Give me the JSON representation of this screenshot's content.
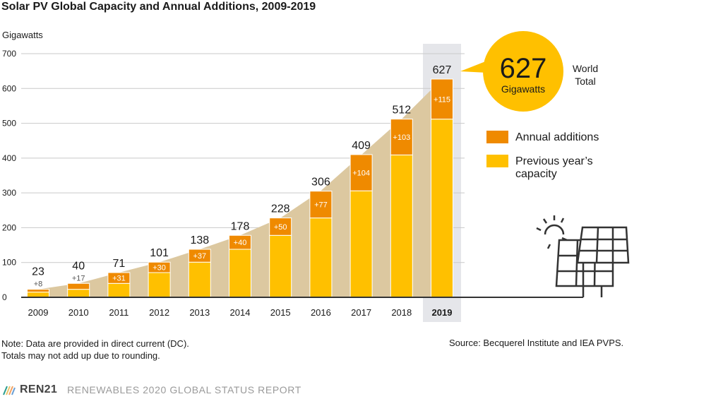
{
  "title": "Solar PV Global Capacity and Annual Additions, 2009-2019",
  "ylabel": "Gigawatts",
  "note_line1": "Note: Data are provided in direct current (DC).",
  "note_line2": "Totals may not add up due to rounding.",
  "source": "Source: Becquerel Institute and IEA PVPS.",
  "footer": {
    "logo_text": "REN21",
    "report": "RENEWABLES 2020 GLOBAL STATUS REPORT"
  },
  "callout": {
    "value": "627",
    "unit": "Gigawatts",
    "label_line1": "World",
    "label_line2": "Total"
  },
  "legend": {
    "annual": "Annual additions",
    "previous_line1": "Previous year’s",
    "previous_line2": "capacity"
  },
  "colors": {
    "annual": "#ef8a00",
    "previous": "#ffc000",
    "area": "#dcc8a0",
    "highlight": "#e5e6ea",
    "callout": "#ffc000"
  },
  "chart_data": {
    "type": "bar",
    "stacked": true,
    "categories": [
      "2009",
      "2010",
      "2011",
      "2012",
      "2013",
      "2014",
      "2015",
      "2016",
      "2017",
      "2018",
      "2019"
    ],
    "highlight_category": "2019",
    "series": [
      {
        "name": "Previous year’s capacity",
        "values": [
          15,
          23,
          40,
          71,
          101,
          138,
          178,
          228,
          306,
          409,
          512
        ]
      },
      {
        "name": "Annual additions",
        "values": [
          8,
          17,
          31,
          30,
          37,
          40,
          50,
          77,
          104,
          103,
          115
        ]
      }
    ],
    "totals": [
      23,
      40,
      71,
      101,
      138,
      178,
      228,
      306,
      409,
      512,
      627
    ],
    "total_labels": [
      "23",
      "40",
      "71",
      "101",
      "138",
      "178",
      "228",
      "306",
      "409",
      "512",
      "627"
    ],
    "addition_labels": [
      "+8",
      "+17",
      "+31",
      "+30",
      "+37",
      "+40",
      "+50",
      "+77",
      "+104",
      "+103",
      "+115"
    ],
    "ylim": [
      0,
      700
    ],
    "yticks": [
      "0",
      "100",
      "200",
      "300",
      "400",
      "500",
      "600",
      "700"
    ],
    "grid": true
  }
}
